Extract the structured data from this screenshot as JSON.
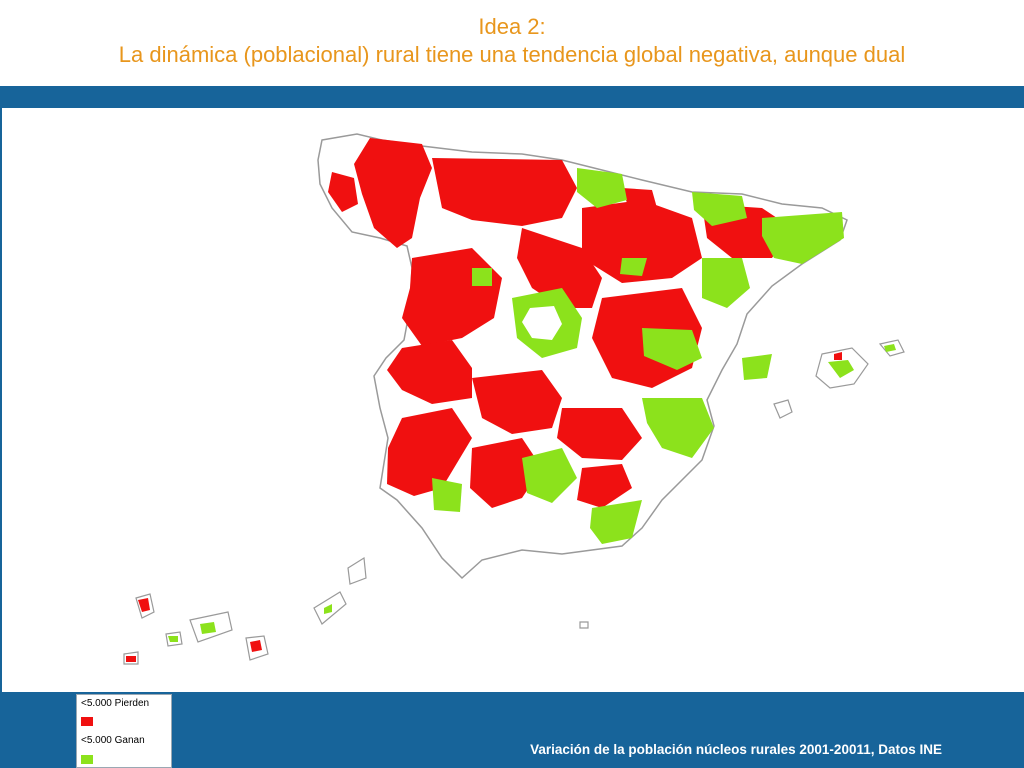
{
  "title": {
    "line1": "Idea 2:",
    "line2": "La dinámica (poblacional) rural tiene una tendencia global negativa, aunque dual"
  },
  "legend": {
    "items": [
      {
        "label": "<5.000 Pierden",
        "color": "#F01010"
      },
      {
        "label": "<5.000 Ganan",
        "color": "#8CE21C"
      }
    ]
  },
  "caption": "Variación de la población núcleos rurales  2001-20011, Datos INE",
  "colors": {
    "title_text": "#E8961C",
    "band": "#17649A",
    "loss": "#F01010",
    "gain": "#8CE21C",
    "outline": "#9a9a9a"
  }
}
